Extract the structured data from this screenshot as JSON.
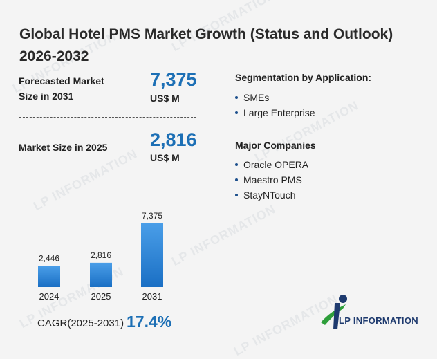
{
  "title": "Global Hotel PMS Market Growth (Status and Outlook) 2026-2032",
  "forecast": {
    "label_line1": "Forecasted Market",
    "label_line2": "Size in 2031",
    "value": "7,375",
    "unit": "US$ M"
  },
  "current": {
    "label": "Market Size in 2025",
    "value": "2,816",
    "unit": "US$ M"
  },
  "segmentation": {
    "title": "Segmentation by Application:",
    "items": [
      "SMEs",
      "Large Enterprise"
    ]
  },
  "companies": {
    "title": "Major Companies",
    "items": [
      "Oracle OPERA",
      "Maestro PMS",
      "StayNTouch"
    ]
  },
  "cagr": {
    "label": "CAGR(2025-2031)",
    "value": "17.4%"
  },
  "logo_text": "LP INFORMATION",
  "watermark_text": "LP INFORMATION",
  "colors": {
    "accent": "#1c6fb5",
    "bar_top": "#4a9ee8",
    "bar_bottom": "#1a6fc4"
  },
  "chart_data": {
    "type": "bar",
    "categories": [
      "2024",
      "2025",
      "2031"
    ],
    "values": [
      2446,
      2816,
      7375
    ],
    "data_labels": [
      "2,446",
      "2,816",
      "7,375"
    ],
    "ylim": [
      0,
      7375
    ],
    "grid": false,
    "title": "",
    "xlabel": "",
    "ylabel": ""
  }
}
